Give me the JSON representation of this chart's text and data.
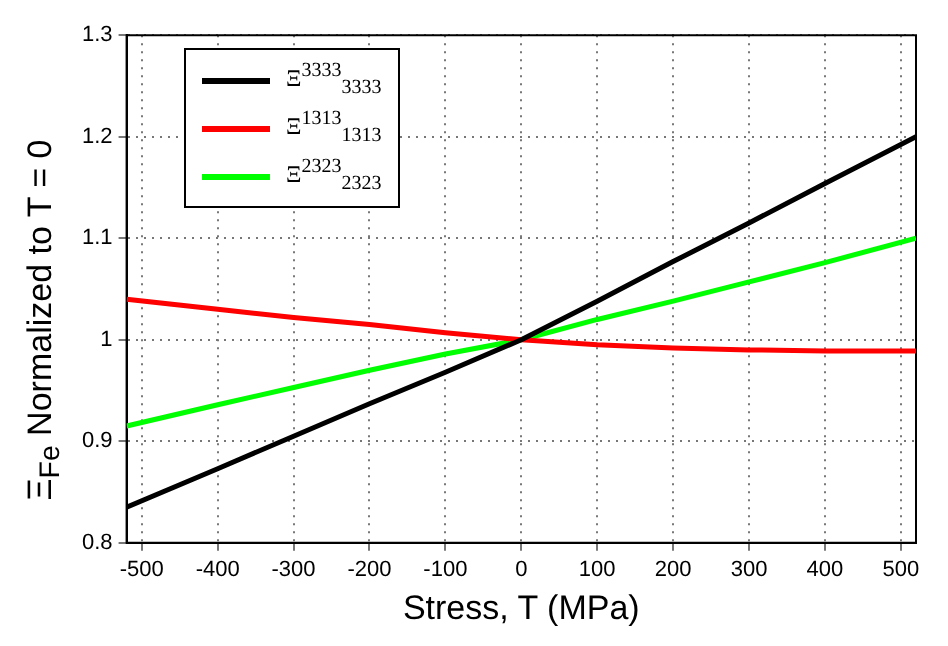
{
  "chart_data": {
    "type": "line",
    "xlabel": "Stress, T (MPa)",
    "ylabel": "Ξ$_{Fe}$ Normalized to T = 0",
    "x": [
      -520,
      -400,
      -300,
      -200,
      -100,
      0,
      100,
      200,
      300,
      400,
      520
    ],
    "series": [
      {
        "name": "Ξ$^{3333}$$_{3333}$",
        "color": "#000000",
        "values": [
          0.835,
          0.873,
          0.905,
          0.937,
          0.968,
          1.0,
          1.038,
          1.077,
          1.115,
          1.154,
          1.2
        ]
      },
      {
        "name": "Ξ$^{1313}$$_{1313}$",
        "color": "#ff0000",
        "values": [
          1.04,
          1.03,
          1.022,
          1.015,
          1.007,
          1.0,
          0.995,
          0.992,
          0.99,
          0.989,
          0.989
        ]
      },
      {
        "name": "Ξ$^{2323}$$_{2323}$",
        "color": "#00ff00",
        "values": [
          0.915,
          0.936,
          0.953,
          0.97,
          0.986,
          1.0,
          1.02,
          1.038,
          1.057,
          1.076,
          1.1
        ]
      }
    ],
    "xlim": [
      -520,
      520
    ],
    "xticks": [
      -500,
      -400,
      -300,
      -200,
      -100,
      0,
      100,
      200,
      300,
      400,
      500
    ],
    "ylim": [
      0.8,
      1.3
    ],
    "yticks": [
      0.8,
      0.9,
      1,
      1.1,
      1.2,
      1.3
    ],
    "grid": true,
    "legend": "top left",
    "marker": "none",
    "line_style": "solid"
  }
}
